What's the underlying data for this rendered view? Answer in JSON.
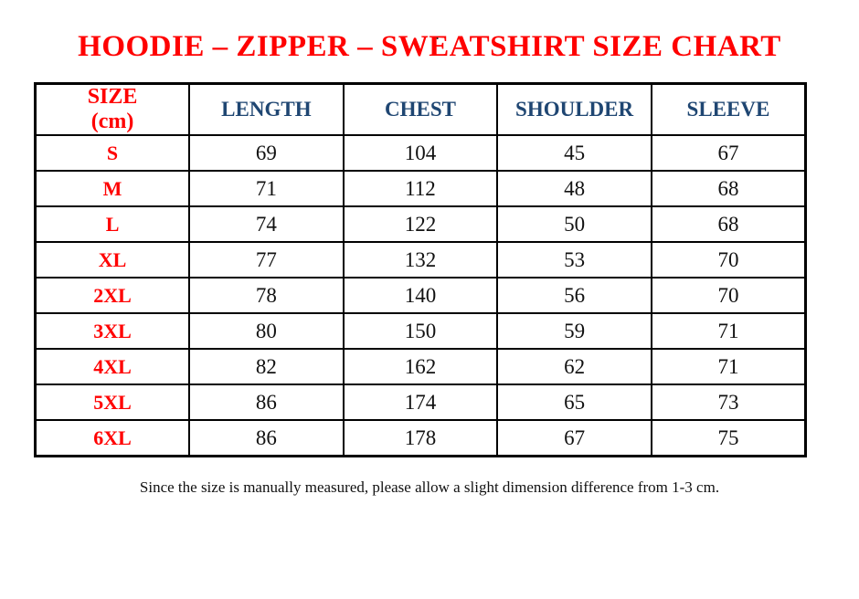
{
  "page": {
    "stray_dot": ".",
    "title": "HOODIE – ZIPPER – SWEATSHIRT SIZE CHART",
    "footer": "Since the size is manually measured, please allow a slight dimension difference from 1-3 cm."
  },
  "table": {
    "header": {
      "size_label": "SIZE",
      "size_unit": "(cm)",
      "columns": [
        "LENGTH",
        "CHEST",
        "SHOULDER",
        "SLEEVE"
      ]
    },
    "rows": [
      {
        "size": "S",
        "values": [
          69,
          104,
          45,
          67
        ]
      },
      {
        "size": "M",
        "values": [
          71,
          112,
          48,
          68
        ]
      },
      {
        "size": "L",
        "values": [
          74,
          122,
          50,
          68
        ]
      },
      {
        "size": "XL",
        "values": [
          77,
          132,
          53,
          70
        ]
      },
      {
        "size": "2XL",
        "values": [
          78,
          140,
          56,
          70
        ]
      },
      {
        "size": "3XL",
        "values": [
          80,
          150,
          59,
          71
        ]
      },
      {
        "size": "4XL",
        "values": [
          82,
          162,
          62,
          71
        ]
      },
      {
        "size": "5XL",
        "values": [
          86,
          174,
          65,
          73
        ]
      },
      {
        "size": "6XL",
        "values": [
          86,
          178,
          67,
          75
        ]
      }
    ]
  },
  "colors": {
    "accent_red": "#ff0000",
    "header_blue": "#1f4672",
    "border_black": "#000000",
    "background": "#ffffff"
  }
}
